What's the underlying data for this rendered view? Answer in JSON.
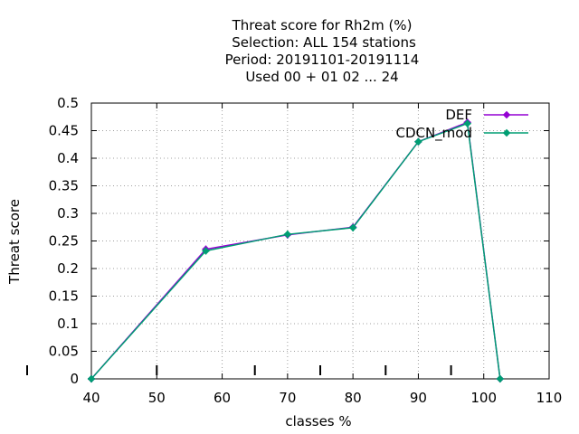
{
  "chart_data": {
    "type": "line",
    "title_lines": [
      "Threat score  for Rh2m (%)",
      "Selection: ALL    154 stations",
      "Period: 20191101-20191114",
      "Used  00 + 01 02 ... 24"
    ],
    "xlabel": "classes %",
    "ylabel": "Threat score",
    "xlim": [
      40,
      110
    ],
    "ylim": [
      0,
      0.5
    ],
    "x_ticks": [
      "40",
      "50",
      "60",
      "70",
      "80",
      "90",
      "100",
      "110"
    ],
    "y_ticks": [
      "0",
      "0.05",
      "0.1",
      "0.15",
      "0.2",
      "0.25",
      "0.3",
      "0.35",
      "0.4",
      "0.45",
      "0.5"
    ],
    "class_boundary_marks": [
      40,
      50,
      65,
      75,
      85,
      95
    ],
    "grid": true,
    "legend_position": "top-right",
    "series": [
      {
        "name": "DEF",
        "color": "#9400d3",
        "x": [
          40,
          57.5,
          70,
          80,
          90,
          97.5,
          102.5
        ],
        "y": [
          0,
          0.235,
          0.261,
          0.275,
          0.43,
          0.465,
          0
        ]
      },
      {
        "name": "CDCN_mod",
        "color": "#009e73",
        "x": [
          40,
          57.5,
          70,
          80,
          90,
          97.5,
          102.5
        ],
        "y": [
          0,
          0.232,
          0.262,
          0.274,
          0.43,
          0.463,
          0
        ]
      }
    ]
  }
}
